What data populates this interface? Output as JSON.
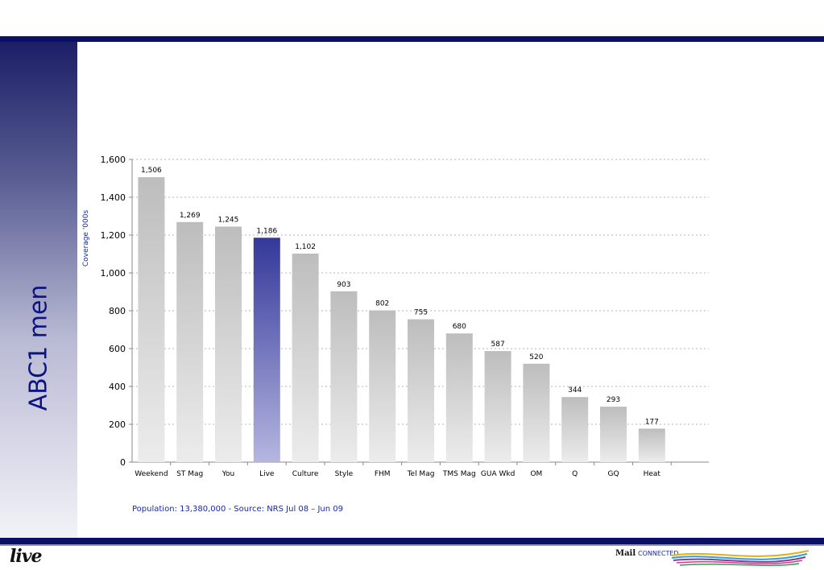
{
  "slide": {
    "side_title": "ABC1 men",
    "footnote": "Population: 13,380,000 - Source: NRS Jul 08 – Jun 09",
    "logo_left": "live",
    "logo_right_mail": "Mail",
    "logo_right_connected": "CONNECTED"
  },
  "colors": {
    "brand_navy": "#0b1066",
    "bar_grey": "#c0c0c0",
    "bar_highlight": "#343899"
  },
  "chart_data": {
    "type": "bar",
    "categories": [
      "Weekend",
      "ST Mag",
      "You",
      "Live",
      "Culture",
      "Style",
      "FHM",
      "Tel Mag",
      "TMS Mag",
      "GUA Wkd",
      "OM",
      "Q",
      "GQ",
      "Heat"
    ],
    "values": [
      1506,
      1269,
      1245,
      1186,
      1102,
      903,
      802,
      755,
      680,
      587,
      520,
      344,
      293,
      177
    ],
    "value_labels": [
      "1,506",
      "1,269",
      "1,245",
      "1,186",
      "1,102",
      "903",
      "802",
      "755",
      "680",
      "587",
      "520",
      "344",
      "293",
      "177"
    ],
    "highlight_category": "Live",
    "ylabel": "Coverage '000s",
    "xlabel": "",
    "title": "",
    "ylim": [
      0,
      1600
    ],
    "yticks": [
      0,
      200,
      400,
      600,
      800,
      1000,
      1200,
      1400,
      1600
    ],
    "ytick_labels": [
      "0",
      "200",
      "400",
      "600",
      "800",
      "1,000",
      "1,200",
      "1,400",
      "1,600"
    ],
    "grid": true
  }
}
